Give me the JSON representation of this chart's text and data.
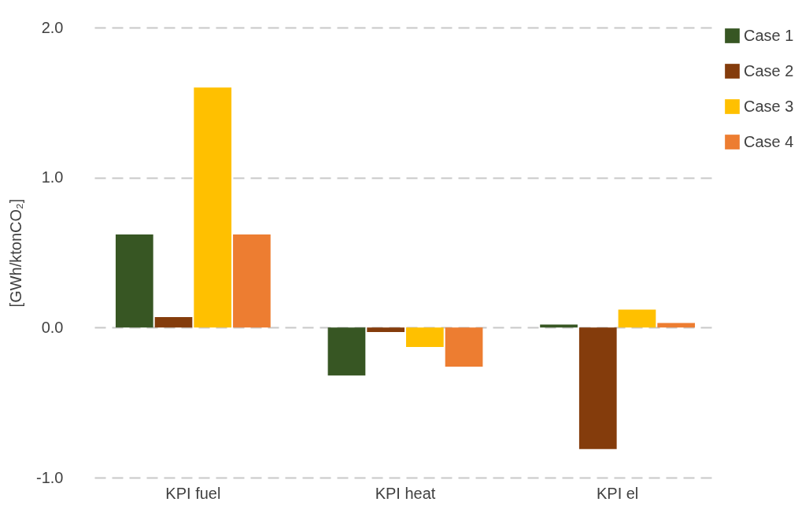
{
  "chart_data": {
    "type": "bar",
    "ylabel": "[GWh/ktonCO₂]",
    "categories": [
      "KPI fuel",
      "KPI heat",
      "KPI el"
    ],
    "series": [
      {
        "name": "Case 1",
        "color": "#375623",
        "values": [
          0.62,
          -0.32,
          0.02
        ]
      },
      {
        "name": "Case 2",
        "color": "#843c0c",
        "values": [
          0.07,
          -0.03,
          -0.81
        ]
      },
      {
        "name": "Case 3",
        "color": "#ffc000",
        "values": [
          1.6,
          -0.13,
          0.12
        ]
      },
      {
        "name": "Case 4",
        "color": "#ed7d31",
        "values": [
          0.62,
          -0.26,
          0.03
        ]
      }
    ],
    "ylim": [
      -1.0,
      2.0
    ],
    "yticks": [
      {
        "value": -1,
        "label": "-1.0"
      },
      {
        "value": 0,
        "label": "0.0"
      },
      {
        "value": 1,
        "label": "1.0"
      },
      {
        "value": 2,
        "label": "2.0"
      }
    ],
    "grid": "y",
    "legend": "right"
  }
}
